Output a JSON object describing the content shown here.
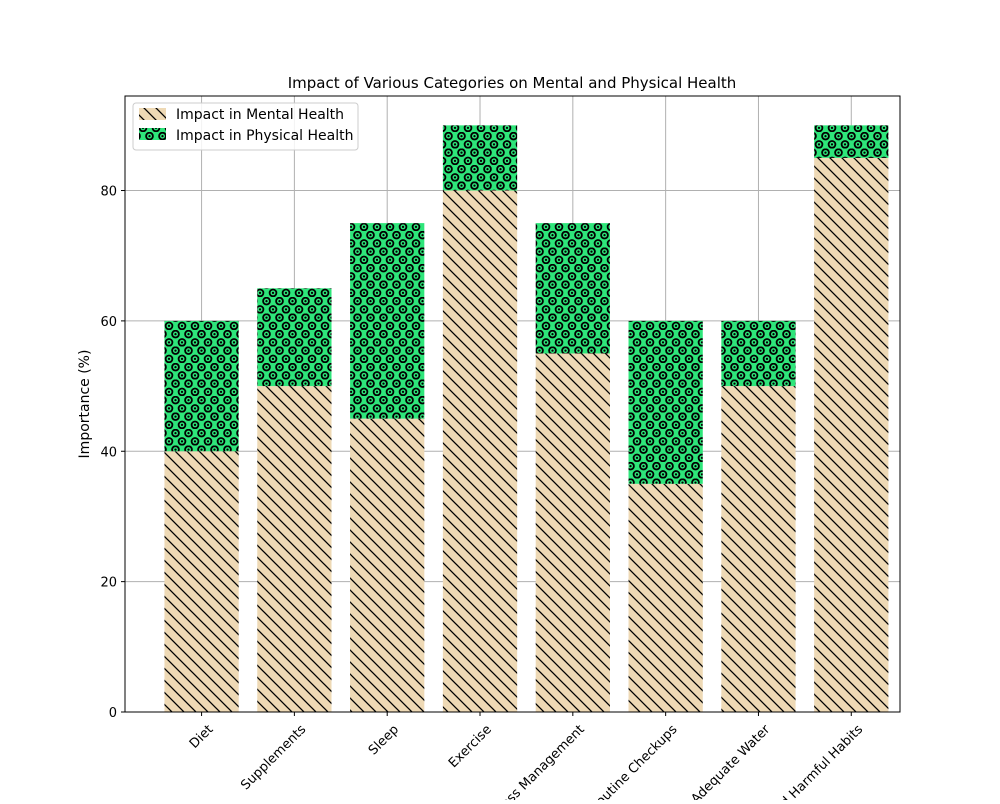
{
  "chart_data": {
    "type": "bar",
    "stacked": true,
    "title": "Impact of Various Categories on Mental and Physical Health",
    "xlabel": "",
    "ylabel": "Importance (%)",
    "ylim": [
      0,
      94.5
    ],
    "yticks": [
      0,
      20,
      40,
      60,
      80
    ],
    "grid": true,
    "legend_position": "top-left",
    "categories": [
      "Diet",
      "Supplements",
      "Sleep",
      "Exercise",
      "Stress Management",
      "Routine Checkups",
      "Adequate Water",
      "Avoid Harmful Habits"
    ],
    "series": [
      {
        "name": "Impact in Mental Health",
        "values": [
          40,
          50,
          45,
          80,
          55,
          35,
          50,
          85
        ],
        "color": "#eed9b5",
        "hatch": "diagonal"
      },
      {
        "name": "Impact in Physical Health",
        "values": [
          20,
          15,
          30,
          10,
          20,
          25,
          10,
          5
        ],
        "color": "#2ee57a",
        "hatch": "circles"
      }
    ]
  }
}
